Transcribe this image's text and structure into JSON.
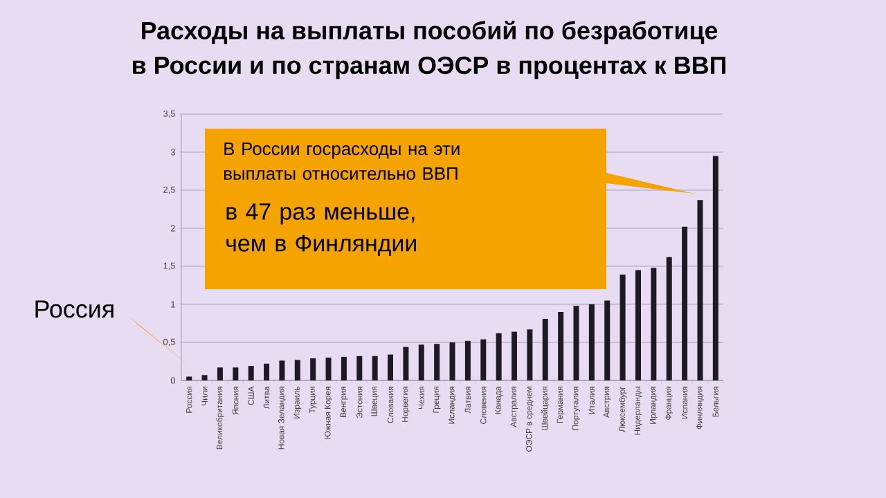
{
  "chart_data": {
    "type": "bar",
    "title": "Расходы на выплаты пособий по безработице",
    "subtitle": "в России и по странам ОЭСР в процентах к ВВП",
    "categories": [
      "Россия",
      "Чили",
      "Великобритания",
      "Япония",
      "США",
      "Литва",
      "Новая Зеландия",
      "Израиль",
      "Турция",
      "Южная Корея",
      "Венгрия",
      "Эстония",
      "Швеция",
      "Словакия",
      "Норвегия",
      "Чехия",
      "Греция",
      "Исландия",
      "Латвия",
      "Словения",
      "Канада",
      "Австралия",
      "ОЭСР в среднем",
      "Швейцария",
      "Германия",
      "Португалия",
      "Италия",
      "Австрия",
      "Люксембург",
      "Нидерланды",
      "Ирландия",
      "Франция",
      "Испания",
      "Финляндия",
      "Бельгия"
    ],
    "values": [
      0.05,
      0.07,
      0.17,
      0.17,
      0.19,
      0.22,
      0.26,
      0.27,
      0.29,
      0.3,
      0.31,
      0.32,
      0.32,
      0.34,
      0.44,
      0.47,
      0.48,
      0.5,
      0.52,
      0.54,
      0.62,
      0.64,
      0.67,
      0.81,
      0.9,
      0.98,
      1.0,
      1.05,
      1.39,
      1.45,
      1.48,
      1.62,
      2.02,
      2.37,
      2.95
    ],
    "color": "#1e1a24",
    "ylim": [
      0,
      3.5
    ],
    "yticks": [
      {
        "value": 0,
        "label": "0"
      },
      {
        "value": 0.5,
        "label": "0,5"
      },
      {
        "value": 1,
        "label": "1"
      },
      {
        "value": 1.5,
        "label": "1,5"
      },
      {
        "value": 2,
        "label": "2"
      },
      {
        "value": 2.5,
        "label": "2,5"
      },
      {
        "value": 3,
        "label": "3"
      },
      {
        "value": 3.5,
        "label": "3,5"
      }
    ],
    "grid": "y",
    "annotations": [
      "В России госрасходы на эти выплаты относительно ВВП",
      "в 47 раз меньше, чем в Финляндии",
      "Россия"
    ]
  }
}
